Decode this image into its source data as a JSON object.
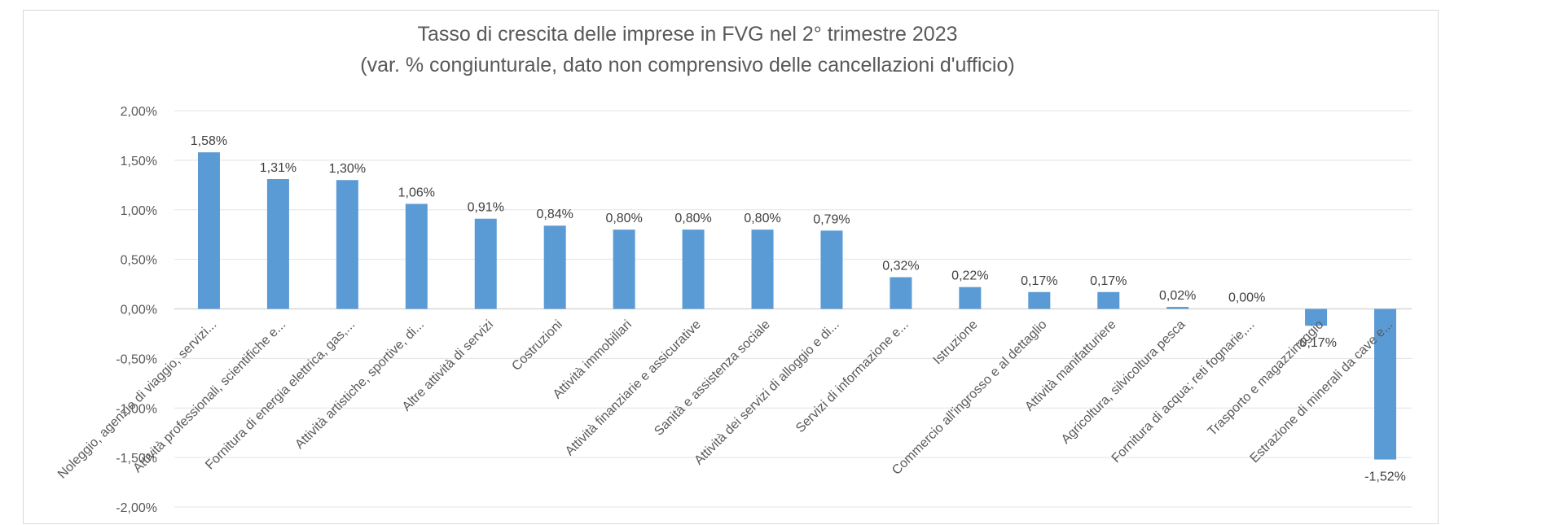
{
  "chart_data": {
    "type": "bar",
    "title": "Tasso di crescita delle imprese in FVG nel 2° trimestre 2023",
    "subtitle": "(var. % congiunturale, dato non comprensivo delle cancellazioni d'ufficio)",
    "xlabel": "",
    "ylabel": "",
    "ylim": [
      -2.0,
      2.0
    ],
    "yticks": [
      2.0,
      1.5,
      1.0,
      0.5,
      0.0,
      -0.5,
      -1.0,
      -1.5,
      -2.0
    ],
    "ytick_labels": [
      "2,00%",
      "1,50%",
      "1,00%",
      "0,50%",
      "0,00%",
      "-0,50%",
      "-1,00%",
      "-1,50%",
      "-2,00%"
    ],
    "grid": true,
    "legend": "none",
    "bar_color": "#5b9bd5",
    "categories": [
      "Noleggio, agenzie di viaggio, servizi...",
      "Attività professionali, scientifiche e...",
      "Fornitura di energia elettrica, gas,...",
      "Attività artistiche, sportive, di...",
      "Altre attività di servizi",
      "Costruzioni",
      "Attività immobiliari",
      "Attività finanziarie e assicurative",
      "Sanità e assistenza sociale",
      "Attività dei servizi di alloggio e di...",
      "Servizi di informazione e...",
      "Istruzione",
      "Commercio all'ingrosso e al dettaglio",
      "Attività manifatturiere",
      "Agricoltura, silvicoltura pesca",
      "Fornitura di acqua; reti fognarie,...",
      "Trasporto e magazzinaggio",
      "Estrazione di minerali da cave e..."
    ],
    "values": [
      1.58,
      1.31,
      1.3,
      1.06,
      0.91,
      0.84,
      0.8,
      0.8,
      0.8,
      0.79,
      0.32,
      0.22,
      0.17,
      0.17,
      0.02,
      0.0,
      -0.17,
      -1.52
    ],
    "data_labels": [
      "1,58%",
      "1,31%",
      "1,30%",
      "1,06%",
      "0,91%",
      "0,84%",
      "0,80%",
      "0,80%",
      "0,80%",
      "0,79%",
      "0,32%",
      "0,22%",
      "0,17%",
      "0,17%",
      "0,02%",
      "0,00%",
      "-0,17%",
      "-1,52%"
    ]
  }
}
